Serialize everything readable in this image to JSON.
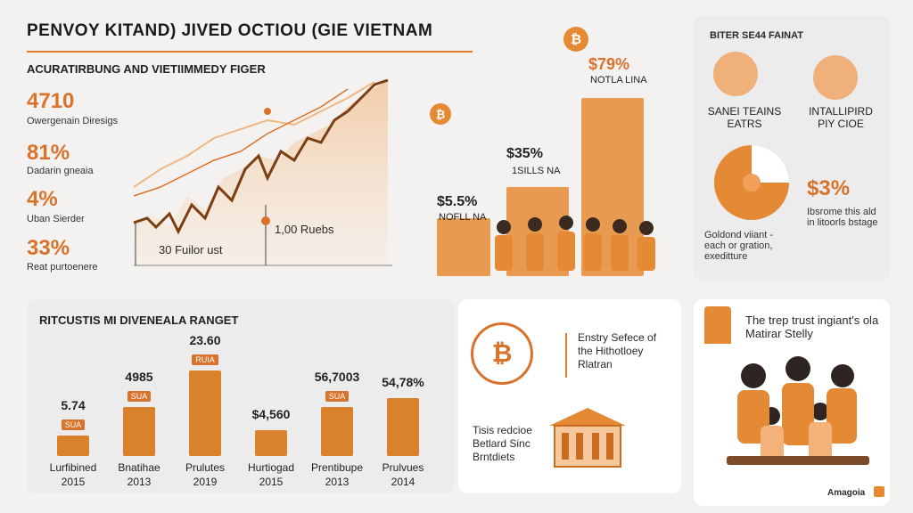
{
  "header": {
    "title": "PENVOY KITAND) JIVED OCTIOU (GIE VIETNAM",
    "subtitle": "ACURATIRBUNG AND VIETIIMMEDY FIGER"
  },
  "stats": [
    {
      "value": "4710",
      "label": "Owergenain Diresigs"
    },
    {
      "value": "81%",
      "label": "Dadarin gneaia"
    },
    {
      "value": "4%",
      "label": "Uban Sierder"
    },
    {
      "value": "33%",
      "label": "Reat purtoenere"
    }
  ],
  "line_chart": {
    "annotation_left": "30 Fuilor ust",
    "annotation_right": "1,00 Ruebs"
  },
  "bar_top": {
    "values": [
      {
        "value": "$5.5%",
        "label": "NOFLL NA"
      },
      {
        "value": "$35%",
        "label": "1SILLS NA"
      },
      {
        "value": "$79%",
        "label": "NOTLA LINA"
      }
    ]
  },
  "right_top": {
    "title": "BITER SE44 FAINAT",
    "item1": "SANEI TEAINS EATRS",
    "item2": "INTALLIPIRD PIY CIOE",
    "pie_label": "Goldond viiant - each or gration, exeditture",
    "pie_value": "$3%",
    "pie_desc": "Ibsrome this ald in litoorls bstage"
  },
  "bottom_chart": {
    "title": "RITCUSTIS MI DIVENEALA RANGET",
    "bars": [
      {
        "value": "5.74",
        "badge": "SUA",
        "cat": "Lurfibined",
        "year": "2015",
        "level": 0.18
      },
      {
        "value": "4985",
        "badge": "SUA",
        "cat": "Bnatihae",
        "year": "2013",
        "level": 0.42
      },
      {
        "value": "23.60",
        "badge": "RUIA",
        "cat": "Prulutes",
        "year": "2019",
        "level": 0.74
      },
      {
        "value": "$4,560",
        "badge": "",
        "cat": "Hurtiogad",
        "year": "2015",
        "level": 0.22
      },
      {
        "value": "56,7003",
        "badge": "SUA",
        "cat": "Prentibupe",
        "year": "2013",
        "level": 0.42
      },
      {
        "value": "54,78%",
        "badge": "",
        "cat": "Prulvues",
        "year": "2014",
        "level": 0.5
      }
    ]
  },
  "bottom_mid": {
    "text1": "Enstry Sefece of the Hithotloey Rlatran",
    "text2": "Tisis redcioe Betlard Sinc Brntdiets"
  },
  "bottom_right": {
    "text": "The trep trust ingiant's ola Matirar Stelly",
    "brand": "Amagoia"
  }
}
